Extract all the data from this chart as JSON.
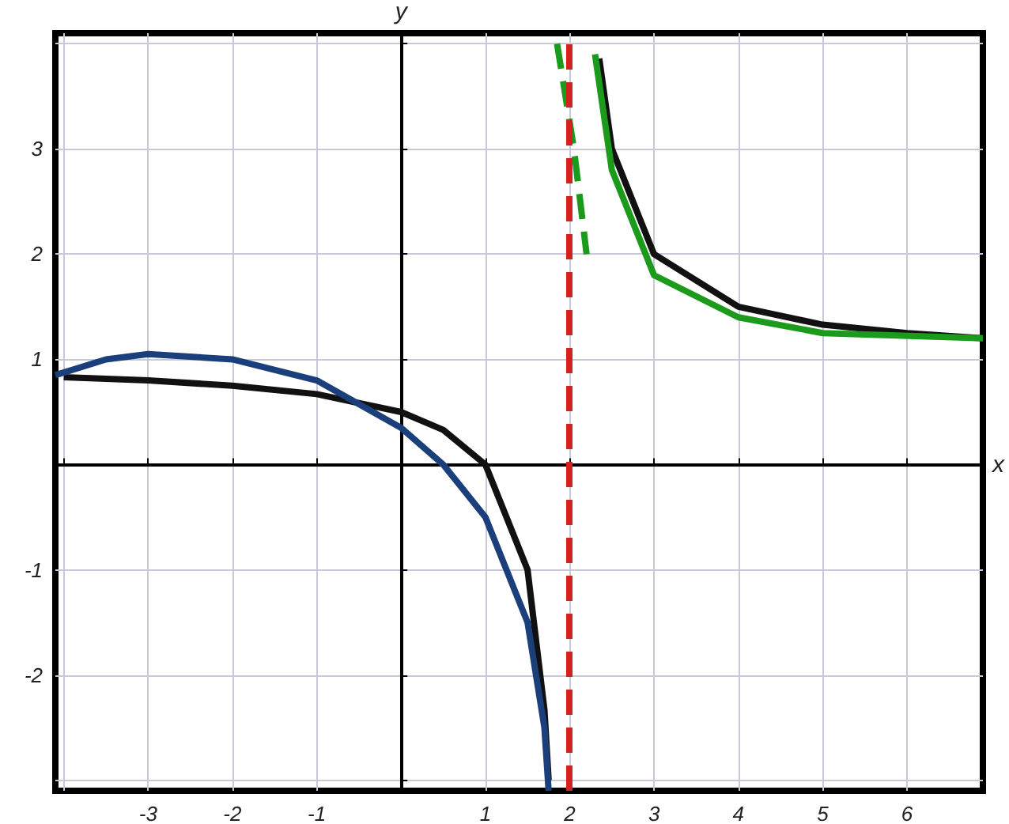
{
  "chart_data": {
    "type": "line",
    "xlabel": "x",
    "ylabel": "y",
    "xlim": [
      -4.1,
      6.9
    ],
    "ylim": [
      -3.1,
      4.1
    ],
    "xticks": [
      {
        "value": -4,
        "label": null
      },
      -3,
      -2,
      -1,
      {
        "value": 0,
        "label": null
      },
      1,
      2,
      3,
      4,
      5,
      6
    ],
    "yticks": [
      {
        "value": -3,
        "label": null
      },
      -2,
      -1,
      {
        "value": 0,
        "label": null
      },
      1,
      2,
      3,
      {
        "value": 4,
        "label": null
      }
    ],
    "grid": true,
    "marker": "none",
    "line_style": "solid",
    "ref_lines": [
      {
        "axis": "x",
        "value": 2,
        "color": "#d42020",
        "line_style": "dashed"
      }
    ],
    "series": [
      {
        "color": "#111111",
        "x": [
          -4,
          -3,
          -2,
          -1,
          0,
          0.5,
          1,
          1.5,
          1.7,
          1.75,
          2,
          2.35,
          2.5,
          3,
          4,
          5,
          6,
          6.9
        ],
        "values": [
          0.83,
          0.8,
          0.75,
          0.67,
          0.5,
          0.33,
          0,
          -1,
          -2.33,
          -3,
          null,
          3.86,
          3,
          2,
          1.5,
          1.33,
          1.25,
          1.2
        ]
      },
      {
        "color": "#1a3f7a",
        "x": [
          -4.1,
          -3.5,
          -3,
          -2,
          -1,
          0,
          0.5,
          1,
          1.5,
          1.7,
          1.75
        ],
        "values": [
          0.85,
          1.0,
          1.05,
          1.0,
          0.8,
          0.35,
          0,
          -0.5,
          -1.5,
          -2.5,
          -3.1
        ]
      },
      {
        "color": "#1c9a1c",
        "x": [
          2.3,
          2.5,
          3,
          4,
          5,
          6.9
        ],
        "values": [
          3.9,
          2.8,
          1.8,
          1.4,
          1.25,
          1.2
        ]
      },
      {
        "color": "#1c9a1c",
        "line_style": "dashed",
        "x": [
          1.85,
          2.05,
          2.2
        ],
        "values": [
          4,
          3,
          2
        ]
      }
    ]
  }
}
